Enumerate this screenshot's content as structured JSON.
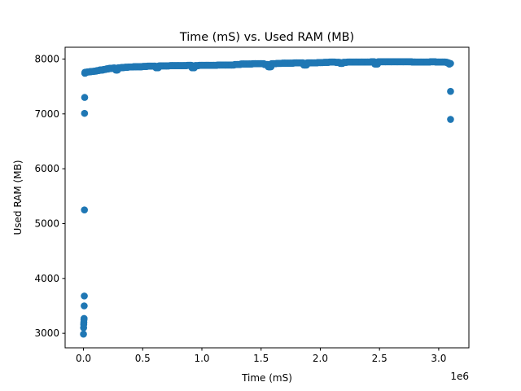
{
  "chart_data": {
    "type": "scatter",
    "title": "Time (mS) vs. Used RAM (MB)",
    "xlabel": "Time (mS)",
    "ylabel": "Used RAM (MB)",
    "x_offset_label": "1e6",
    "x_scale": 1000000,
    "xlim": [
      -0.155,
      3.255
    ],
    "ylim": [
      2735,
      8215
    ],
    "x_ticks": [
      0.0,
      0.5,
      1.0,
      1.5,
      2.0,
      2.5,
      3.0
    ],
    "x_tick_labels": [
      "0.0",
      "0.5",
      "1.0",
      "1.5",
      "2.0",
      "2.5",
      "3.0"
    ],
    "y_ticks": [
      3000,
      4000,
      5000,
      6000,
      7000,
      8000
    ],
    "y_tick_labels": [
      "3000",
      "4000",
      "5000",
      "6000",
      "7000",
      "8000"
    ],
    "grid": false,
    "color": "#1f77b4",
    "series": [
      {
        "x": [
          0.0,
          0.001,
          0.002,
          0.003,
          0.004,
          0.005,
          0.006,
          0.007,
          0.008,
          0.009,
          0.01,
          0.011,
          0.012,
          0.013,
          0.015,
          0.02,
          0.04,
          0.06,
          0.08,
          0.1,
          0.12,
          0.15,
          0.18,
          0.2,
          0.23,
          0.26,
          0.28,
          0.3,
          0.33,
          0.36,
          0.4,
          0.44,
          0.48,
          0.52,
          0.56,
          0.6,
          0.62,
          0.65,
          0.7,
          0.75,
          0.8,
          0.85,
          0.9,
          0.93,
          0.95,
          1.0,
          1.05,
          1.1,
          1.15,
          1.2,
          1.25,
          1.3,
          1.35,
          1.4,
          1.45,
          1.5,
          1.55,
          1.57,
          1.6,
          1.65,
          1.7,
          1.75,
          1.8,
          1.85,
          1.87,
          1.9,
          1.95,
          2.0,
          2.05,
          2.1,
          2.15,
          2.18,
          2.2,
          2.25,
          2.3,
          2.35,
          2.4,
          2.45,
          2.47,
          2.5,
          2.55,
          2.6,
          2.65,
          2.7,
          2.75,
          2.8,
          2.85,
          2.9,
          2.95,
          3.0,
          3.03,
          3.05,
          3.07,
          3.08,
          3.09,
          3.1,
          3.1,
          3.1
        ],
        "y": [
          2985,
          3100,
          3160,
          3200,
          3250,
          3270,
          3500,
          3680,
          5250,
          7010,
          7300,
          7740,
          7750,
          7760,
          7745,
          7760,
          7765,
          7770,
          7775,
          7780,
          7790,
          7800,
          7810,
          7820,
          7830,
          7835,
          7800,
          7840,
          7845,
          7850,
          7855,
          7860,
          7860,
          7865,
          7870,
          7870,
          7840,
          7875,
          7875,
          7880,
          7880,
          7880,
          7885,
          7840,
          7880,
          7885,
          7885,
          7885,
          7890,
          7890,
          7890,
          7900,
          7910,
          7910,
          7915,
          7915,
          7900,
          7860,
          7915,
          7920,
          7925,
          7925,
          7930,
          7930,
          7890,
          7930,
          7930,
          7935,
          7940,
          7945,
          7940,
          7920,
          7940,
          7945,
          7945,
          7945,
          7945,
          7950,
          7910,
          7950,
          7950,
          7950,
          7950,
          7950,
          7950,
          7945,
          7945,
          7945,
          7950,
          7945,
          7945,
          7945,
          7940,
          7930,
          7910,
          7410,
          6900,
          7920
        ]
      }
    ]
  }
}
